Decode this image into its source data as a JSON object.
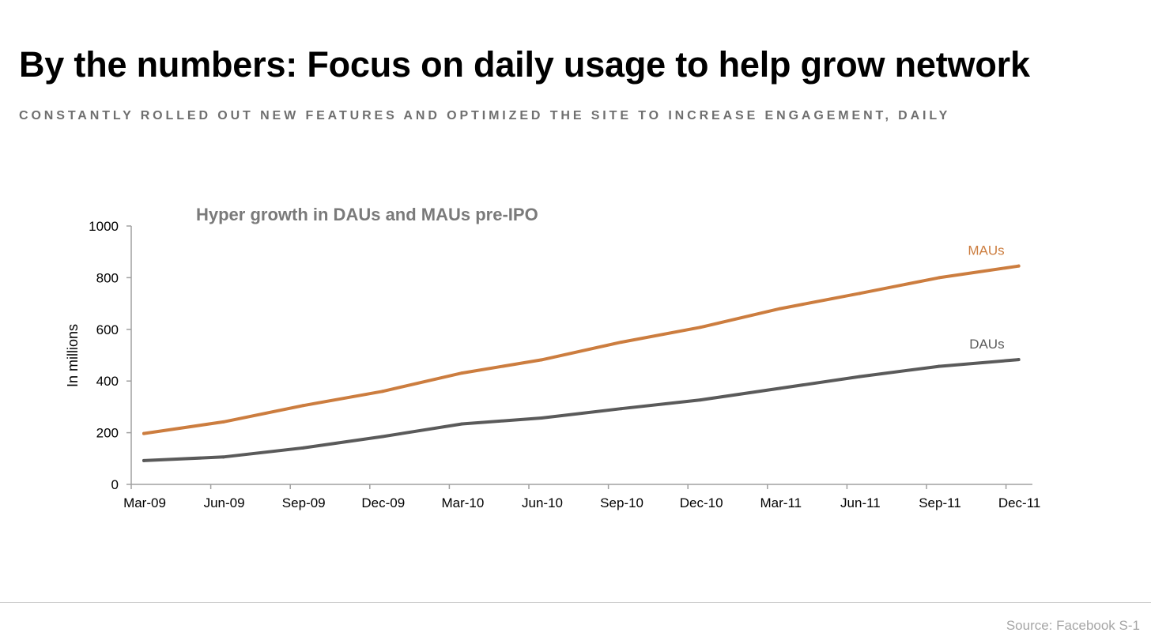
{
  "slide": {
    "title": "By the numbers: Focus on daily usage to help grow network",
    "subtitle": "CONSTANTLY ROLLED OUT NEW FEATURES AND OPTIMIZED THE SITE TO INCREASE ENGAGEMENT, DAILY",
    "source": "Source: Facebook S-1"
  },
  "chart_data": {
    "type": "line",
    "title": "Hyper growth in DAUs and MAUs pre-IPO",
    "xlabel": "",
    "ylabel": "In millions",
    "categories": [
      "Mar-09",
      "Jun-09",
      "Sep-09",
      "Dec-09",
      "Mar-10",
      "Jun-10",
      "Sep-10",
      "Dec-10",
      "Mar-11",
      "Jun-11",
      "Sep-11",
      "Dec-11"
    ],
    "ylim": [
      0,
      1000
    ],
    "yticks": [
      0,
      200,
      400,
      600,
      800,
      1000
    ],
    "grid": false,
    "legend": "inline-labels",
    "series": [
      {
        "name": "MAUs",
        "color": "#cc7d3f",
        "values": [
          197,
          242,
          305,
          360,
          431,
          482,
          550,
          608,
          680,
          739,
          800,
          845
        ]
      },
      {
        "name": "DAUs",
        "color": "#5a5a5a",
        "values": [
          92,
          106,
          141,
          185,
          234,
          257,
          293,
          327,
          372,
          417,
          457,
          483
        ]
      }
    ]
  }
}
